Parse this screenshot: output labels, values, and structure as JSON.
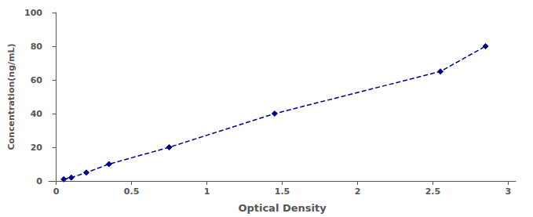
{
  "chart_data": {
    "type": "line",
    "xlabel": "Optical Density",
    "ylabel": "Concentration(ng/mL)",
    "x": [
      0.05,
      0.1,
      0.2,
      0.35,
      0.75,
      1.45,
      2.55,
      2.85
    ],
    "values": [
      1,
      2,
      5,
      10,
      20,
      40,
      65,
      80
    ],
    "color": "#00008B",
    "marker": "diamond",
    "line_style": "dashed",
    "xlim": [
      -0.05,
      3.05
    ],
    "ylim": [
      0,
      100
    ],
    "xticks": [
      0,
      0.5,
      1,
      1.5,
      2,
      2.5,
      3
    ],
    "yticks": [
      0,
      20,
      40,
      60,
      80,
      100
    ],
    "grid": false
  }
}
